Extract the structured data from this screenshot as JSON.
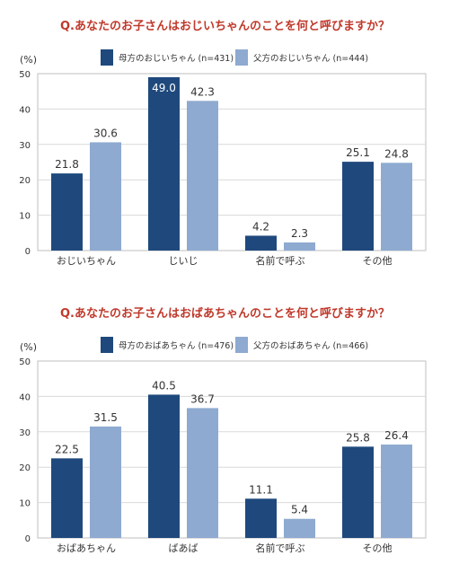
{
  "chart_data": [
    {
      "type": "bar",
      "title": "Q.あなたのお子さんはおじいちゃんのことを何と呼びますか？",
      "unit_label": "(%)",
      "categories": [
        "おじいちゃん",
        "じいじ",
        "名前で呼ぶ",
        "その他"
      ],
      "series": [
        {
          "name": "母方のおじいちゃん (n=431)",
          "color": "#1f497d",
          "values": [
            21.8,
            49.0,
            4.2,
            25.1
          ]
        },
        {
          "name": "父方のおじいちゃん (n=444)",
          "color": "#8eaad0",
          "values": [
            30.6,
            42.3,
            2.3,
            24.8
          ]
        }
      ],
      "value_labels": [
        [
          "21.8",
          "49.0",
          "4.2",
          "25.1"
        ],
        [
          "30.6",
          "42.3",
          "2.3",
          "24.8"
        ]
      ],
      "ylim": [
        0,
        50
      ],
      "yticks": [
        0,
        10,
        20,
        30,
        40,
        50
      ],
      "ytick_labels": [
        "0",
        "10",
        "20",
        "30",
        "40",
        "50"
      ],
      "grid": true,
      "legend_position": "top"
    },
    {
      "type": "bar",
      "title": "Q.あなたのお子さんはおばあちゃんのことを何と呼びますか？",
      "unit_label": "(%)",
      "categories": [
        "おばあちゃん",
        "ばあば",
        "名前で呼ぶ",
        "その他"
      ],
      "series": [
        {
          "name": "母方のおばあちゃん (n=476)",
          "color": "#1f497d",
          "values": [
            22.5,
            40.5,
            11.1,
            25.8
          ]
        },
        {
          "name": "父方のおばあちゃん (n=466)",
          "color": "#8eaad0",
          "values": [
            31.5,
            36.7,
            5.4,
            26.4
          ]
        }
      ],
      "value_labels": [
        [
          "22.5",
          "40.5",
          "11.1",
          "25.8"
        ],
        [
          "31.5",
          "36.7",
          "5.4",
          "26.4"
        ]
      ],
      "ylim": [
        0,
        50
      ],
      "yticks": [
        0,
        10,
        20,
        30,
        40,
        50
      ],
      "ytick_labels": [
        "0",
        "10",
        "20",
        "30",
        "40",
        "50"
      ],
      "grid": true,
      "legend_position": "top"
    }
  ]
}
